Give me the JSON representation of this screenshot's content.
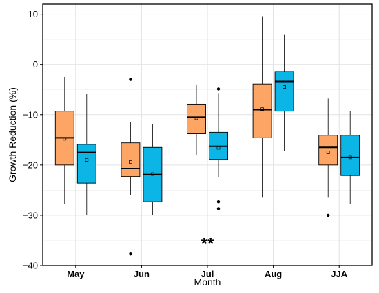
{
  "chart_data": {
    "type": "boxplot",
    "xlabel": "Month",
    "ylabel": "Growth Reduction (%)",
    "ylim": [
      -40,
      12
    ],
    "yticks": [
      10,
      0,
      -10,
      -20,
      -30,
      -40
    ],
    "grid": true,
    "categories": [
      "May",
      "Jun",
      "Jul",
      "Aug",
      "JJA"
    ],
    "colors": {
      "group_1": "#FDA564",
      "group_2": "#0BB5E6"
    },
    "series": [
      {
        "color_key": "group_1",
        "boxes": [
          {
            "whisker_low": -27.7,
            "q1": -20.0,
            "median": -14.6,
            "q3": -9.3,
            "whisker_high": -2.5,
            "mean": -14.8,
            "outliers": []
          },
          {
            "whisker_low": -26.0,
            "q1": -22.3,
            "median": -20.7,
            "q3": -15.6,
            "whisker_high": -11.5,
            "mean": -19.4,
            "outliers": [
              -3.0,
              -37.7
            ]
          },
          {
            "whisker_low": -18.0,
            "q1": -13.8,
            "median": -10.5,
            "q3": -7.9,
            "whisker_high": -4.0,
            "mean": -10.7,
            "outliers": []
          },
          {
            "whisker_low": -26.5,
            "q1": -14.6,
            "median": -9.0,
            "q3": -3.9,
            "whisker_high": 9.6,
            "mean": -8.9,
            "outliers": []
          },
          {
            "whisker_low": -26.5,
            "q1": -20.0,
            "median": -16.5,
            "q3": -14.1,
            "whisker_high": -6.8,
            "mean": -17.5,
            "outliers": [
              -30.0
            ]
          }
        ]
      },
      {
        "color_key": "group_2",
        "boxes": [
          {
            "whisker_low": -30.0,
            "q1": -23.6,
            "median": -17.5,
            "q3": -15.9,
            "whisker_high": -5.8,
            "mean": -19.0,
            "outliers": []
          },
          {
            "whisker_low": -30.0,
            "q1": -27.3,
            "median": -21.9,
            "q3": -16.5,
            "whisker_high": -11.9,
            "mean": -21.8,
            "outliers": []
          },
          {
            "whisker_low": -22.4,
            "q1": -18.9,
            "median": -16.3,
            "q3": -13.5,
            "whisker_high": -5.7,
            "mean": -16.6,
            "outliers": [
              -4.9,
              -27.3,
              -28.7
            ]
          },
          {
            "whisker_low": -17.2,
            "q1": -9.3,
            "median": -3.4,
            "q3": -1.4,
            "whisker_high": 5.9,
            "mean": -4.5,
            "outliers": []
          },
          {
            "whisker_low": -27.8,
            "q1": -22.1,
            "median": -18.5,
            "q3": -14.1,
            "whisker_high": -9.3,
            "mean": -18.5,
            "outliers": []
          }
        ]
      }
    ],
    "annotations": [
      {
        "text": "**",
        "category": "Jul",
        "y": -35.7
      }
    ]
  }
}
